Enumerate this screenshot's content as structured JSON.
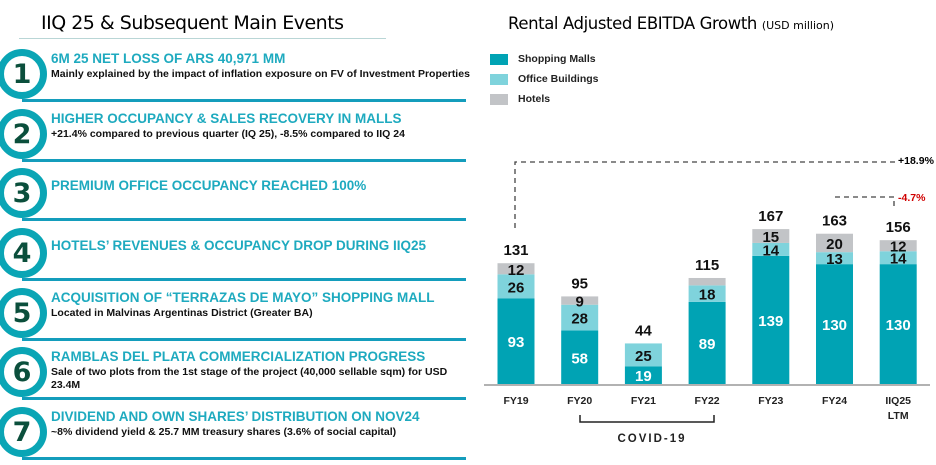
{
  "left": {
    "title": "IIQ 25 & Subsequent Main Events",
    "events": [
      {
        "number": "1",
        "heading": "6M 25 NET LOSS OF ARS 40,971 MM",
        "detail": "Mainly explained by the impact of inflation exposure on FV of Investment Properties"
      },
      {
        "number": "2",
        "heading": "HIGHER OCCUPANCY & SALES RECOVERY IN MALLS",
        "detail": "+21.4% compared to previous quarter (IQ 25), -8.5% compared to IIQ 24"
      },
      {
        "number": "3",
        "heading": "PREMIUM OFFICE OCCUPANCY REACHED 100%",
        "detail": ""
      },
      {
        "number": "4",
        "heading": "HOTELS’ REVENUES & OCCUPANCY DROP DURING IIQ25",
        "detail": ""
      },
      {
        "number": "5",
        "heading": "ACQUISITION OF “TERRAZAS DE MAYO” SHOPPING MALL",
        "detail": "Located in Malvinas Argentinas District (Greater BA)"
      },
      {
        "number": "6",
        "heading": "RAMBLAS DEL PLATA COMMERCIALIZATION PROGRESS",
        "detail": "Sale of two plots from the 1st stage of the project (40,000 sellable sqm) for USD 23.4M"
      },
      {
        "number": "7",
        "heading": "DIVIDEND AND OWN SHARES’ DISTRIBUTION ON NOV24",
        "detail": "~8% dividend yield & 25.7 MM treasury shares (3.6% of social capital)"
      }
    ]
  },
  "chart_data": {
    "type": "bar",
    "stacked": true,
    "title": "Rental Adjusted EBITDA Growth",
    "subtitle": "(USD million)",
    "categories": [
      "FY19",
      "FY20",
      "FY21",
      "FY22",
      "FY23",
      "FY24",
      "IIQ25 LTM"
    ],
    "series": [
      {
        "name": "Shopping Malls",
        "color": "#00a3b4",
        "values": [
          93,
          58,
          19,
          89,
          139,
          130,
          130
        ],
        "labels": [
          "93",
          "58",
          "19",
          "89",
          "139",
          "130",
          "130"
        ]
      },
      {
        "name": "Office Buildings",
        "color": "#7fd3dc",
        "values": [
          26,
          28,
          25,
          18,
          14,
          13,
          14
        ],
        "labels": [
          "26",
          "28",
          "25",
          "18",
          "14",
          "13",
          "14"
        ]
      },
      {
        "name": "Hotels",
        "color": "#c2c4c7",
        "values": [
          12,
          9,
          0,
          8,
          15,
          20,
          12
        ],
        "labels": [
          "12",
          "9",
          "",
          "",
          "15",
          "20",
          "12"
        ]
      }
    ],
    "totals": [
      "131",
      "95",
      "44",
      "115",
      "167",
      "163",
      "156"
    ],
    "legend_position": "top-left",
    "annotations": [
      {
        "text": "+18.9%",
        "from": "FY19",
        "to": "IIQ25 LTM",
        "color": "#000000"
      },
      {
        "text": "-4.7%",
        "from": "FY24",
        "to": "IIQ25 LTM",
        "color": "#d00000"
      }
    ],
    "bracket": {
      "text": "COVID-19",
      "from": "FY20",
      "to": "FY22"
    },
    "ylim": [
      0,
      180
    ],
    "grid": false
  }
}
